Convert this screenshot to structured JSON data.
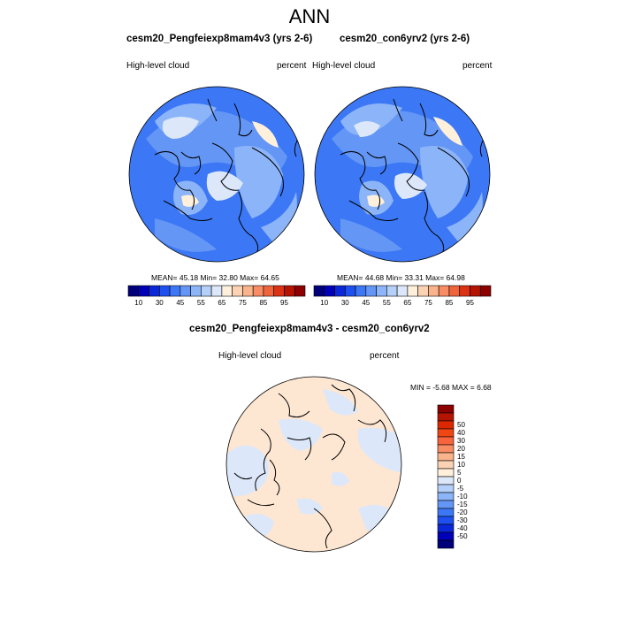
{
  "main_title": "ANN",
  "panels": [
    {
      "title": "cesm20_Pengfeiexp8mam4v3 (yrs 2-6)",
      "variable": "High-level cloud",
      "units": "percent",
      "stats": "MEAN=  45.18  Min=  32.80  Max=  64.65"
    },
    {
      "title": "cesm20_con6yrv2 (yrs 2-6)",
      "variable": "High-level cloud",
      "units": "percent",
      "stats": "MEAN=  44.68  Min=  33.31  Max=  64.98"
    }
  ],
  "diff_panel": {
    "title": "cesm20_Pengfeiexp8mam4v3 - cesm20_con6yrv2",
    "variable": "High-level cloud",
    "units": "percent",
    "stats": "MIN =   -5.68 MAX =   6.68"
  },
  "abs_colorbar": {
    "colors": [
      "#00007a",
      "#0000b8",
      "#0a28d8",
      "#1e50f0",
      "#3c78f5",
      "#6496f5",
      "#8cb4f8",
      "#b4cff8",
      "#dce8fa",
      "#fff0dc",
      "#fcd2b4",
      "#fab48c",
      "#f88c64",
      "#f0643c",
      "#dc3214",
      "#b41400",
      "#8c0000"
    ],
    "labels": [
      "10",
      "30",
      "45",
      "55",
      "65",
      "75",
      "85",
      "95"
    ]
  },
  "diff_colorbar": {
    "colors": [
      "#8c0000",
      "#b41400",
      "#dc2800",
      "#f04614",
      "#f8643c",
      "#f88c64",
      "#fab48c",
      "#fcd2b4",
      "#fff0dc",
      "#dce8fa",
      "#b4cff8",
      "#8cb4f8",
      "#6496f5",
      "#3c78f5",
      "#1e50f0",
      "#0a28d8",
      "#0000b8",
      "#00007a"
    ],
    "labels": [
      "50",
      "40",
      "30",
      "20",
      "15",
      "10",
      "5",
      "0",
      "-5",
      "-10",
      "-15",
      "-20",
      "-30",
      "-40",
      "-50"
    ]
  },
  "map_colors": {
    "abs_base": "#3c78f5",
    "abs_light": "#6496f5",
    "abs_lighter": "#8cb4f8",
    "abs_pale": "#dce8fa",
    "abs_warm": "#fff0dc",
    "diff_blue": "#dce8fa",
    "diff_peach": "#fde6d2"
  }
}
